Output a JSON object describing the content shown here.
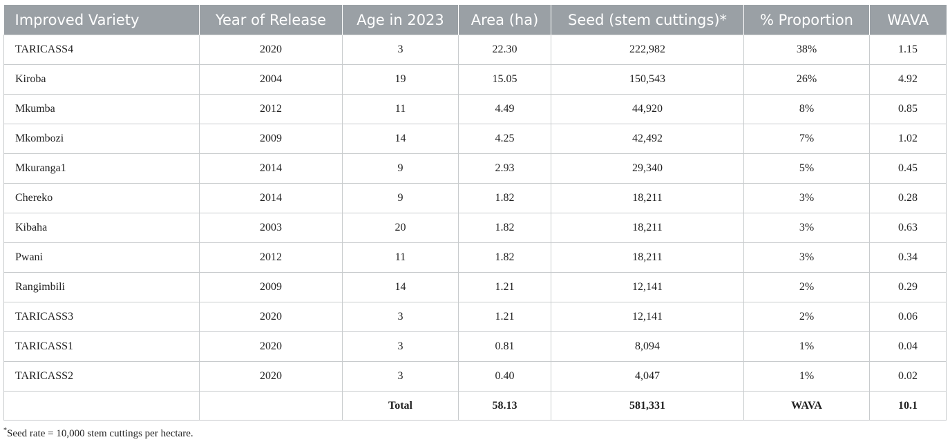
{
  "table": {
    "headers": [
      "Improved Variety",
      "Year of Release",
      "Age in 2023",
      "Area (ha)",
      "Seed (stem cuttings)*",
      "% Proportion",
      "WAVA"
    ],
    "rows": [
      [
        "TARICASS4",
        "2020",
        "3",
        "22.30",
        "222,982",
        "38%",
        "1.15"
      ],
      [
        "Kiroba",
        "2004",
        "19",
        "15.05",
        "150,543",
        "26%",
        "4.92"
      ],
      [
        "Mkumba",
        "2012",
        "11",
        "4.49",
        "44,920",
        "8%",
        "0.85"
      ],
      [
        "Mkombozi",
        "2009",
        "14",
        "4.25",
        "42,492",
        "7%",
        "1.02"
      ],
      [
        "Mkuranga1",
        "2014",
        "9",
        "2.93",
        "29,340",
        "5%",
        "0.45"
      ],
      [
        "Chereko",
        "2014",
        "9",
        "1.82",
        "18,211",
        "3%",
        "0.28"
      ],
      [
        "Kibaha",
        "2003",
        "20",
        "1.82",
        "18,211",
        "3%",
        "0.63"
      ],
      [
        "Pwani",
        "2012",
        "11",
        "1.82",
        "18,211",
        "3%",
        "0.34"
      ],
      [
        "Rangimbili",
        "2009",
        "14",
        "1.21",
        "12,141",
        "2%",
        "0.29"
      ],
      [
        "TARICASS3",
        "2020",
        "3",
        "1.21",
        "12,141",
        "2%",
        "0.06"
      ],
      [
        "TARICASS1",
        "2020",
        "3",
        "0.81",
        "8,094",
        "1%",
        "0.04"
      ],
      [
        "TARICASS2",
        "2020",
        "3",
        "0.40",
        "4,047",
        "1%",
        "0.02"
      ]
    ],
    "total_row": [
      "",
      "",
      "Total",
      "58.13",
      "581,331",
      "WAVA",
      "10.1"
    ]
  },
  "footnote": {
    "marker": "*",
    "text": "Seed rate = 10,000 stem cuttings per hectare."
  },
  "colors": {
    "header_background": "#9aa0a5",
    "header_text": "#ffffff",
    "grid_border": "#c8cbcd"
  }
}
